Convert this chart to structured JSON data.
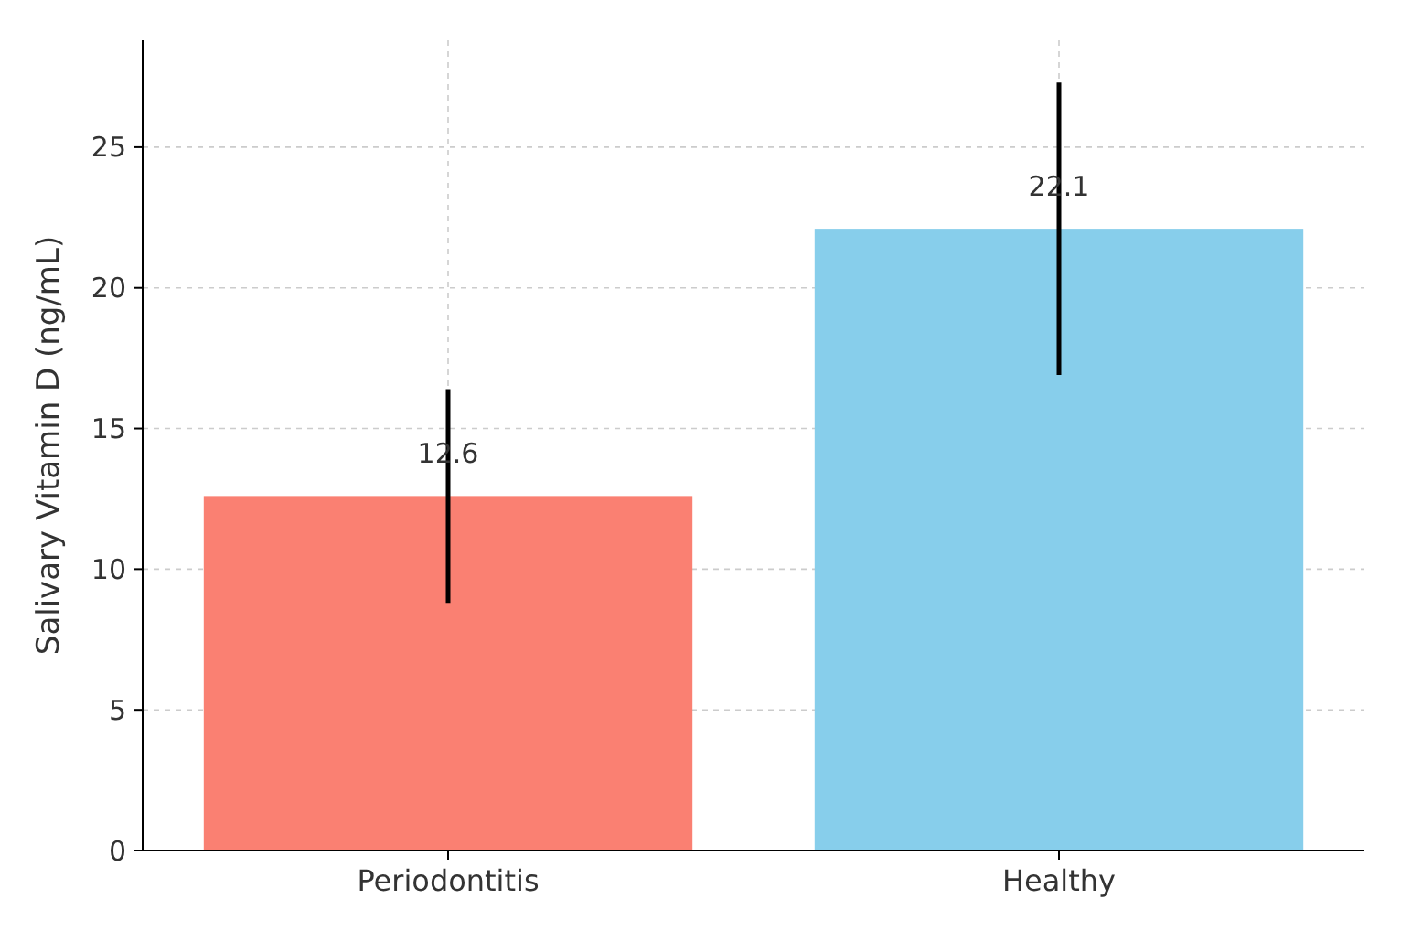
{
  "chart_data": {
    "type": "bar",
    "ylabel": "Salivary Vitamin D (ng/mL)",
    "categories": [
      "Periodontitis",
      "Healthy"
    ],
    "values": [
      12.6,
      22.1
    ],
    "colors": [
      "#fa8072",
      "#87ceeb"
    ],
    "errors": [
      3.8,
      5.2
    ],
    "ylim": [
      0,
      28.8
    ],
    "yticks": [
      0,
      5,
      10,
      15,
      20,
      25
    ],
    "grid": true,
    "data_labels": true
  }
}
